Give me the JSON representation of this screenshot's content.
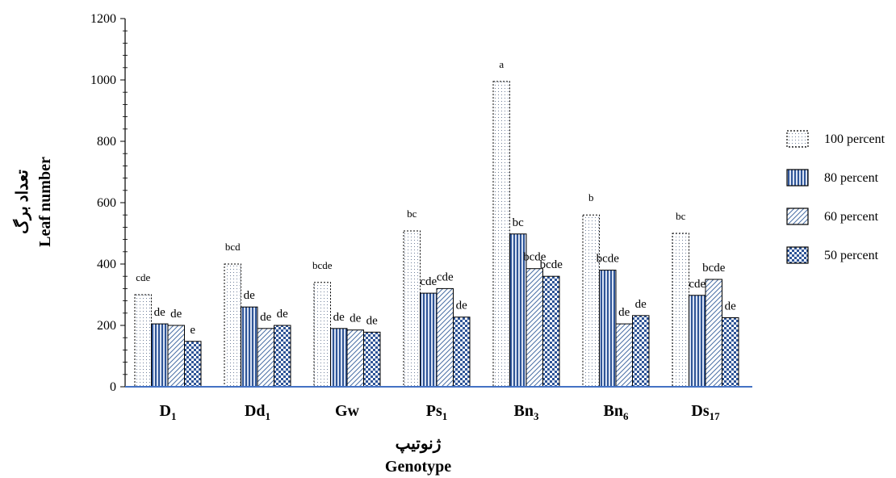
{
  "chart_data": {
    "type": "bar",
    "title": "",
    "categories": [
      {
        "base": "D",
        "sub": "1"
      },
      {
        "base": "Dd",
        "sub": "1"
      },
      {
        "base": "Gw",
        "sub": ""
      },
      {
        "base": "Ps",
        "sub": "1"
      },
      {
        "base": "Bn",
        "sub": "3"
      },
      {
        "base": "Bn",
        "sub": "6"
      },
      {
        "base": "Ds",
        "sub": "17"
      }
    ],
    "series": [
      {
        "name": "100 percent",
        "pattern": "dots",
        "values": [
          300,
          400,
          340,
          508,
          995,
          560,
          500
        ],
        "labels": [
          "cde",
          "bcd",
          "bcde",
          "bc",
          "a",
          "b",
          "bc"
        ]
      },
      {
        "name": "80 percent",
        "pattern": "vlines",
        "values": [
          205,
          260,
          190,
          305,
          498,
          380,
          298
        ],
        "labels": [
          "de",
          "de",
          "de",
          "cde",
          "bc",
          "bcde",
          "cde"
        ]
      },
      {
        "name": "60 percent",
        "pattern": "diag",
        "values": [
          200,
          190,
          185,
          320,
          385,
          205,
          350
        ],
        "labels": [
          "de",
          "de",
          "de",
          "cde",
          "bcde",
          "de",
          "bcde"
        ]
      },
      {
        "name": "50 percent",
        "pattern": "checker",
        "values": [
          148,
          200,
          178,
          227,
          360,
          232,
          225
        ],
        "labels": [
          "e",
          "de",
          "de",
          "de",
          "bcde",
          "de",
          "de"
        ]
      }
    ],
    "ylim": [
      0,
      1200
    ],
    "yticks": [
      0,
      200,
      400,
      600,
      800,
      1000,
      1200
    ],
    "ylabel_fa": "تعداد برگ",
    "ylabel": "Leaf number",
    "xlabel_fa": "ژنوتیپ",
    "xlabel": "Genotype",
    "legend_position": "right",
    "colors": {
      "bar_fill": "#2f5597",
      "axis_line": "#4472c4",
      "outline": "#000000"
    }
  }
}
